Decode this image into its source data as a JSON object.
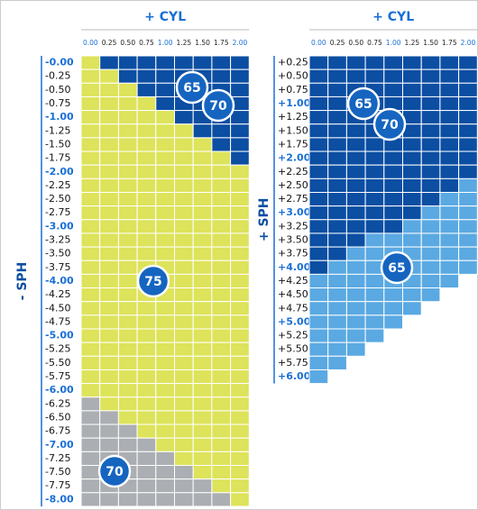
{
  "zones": {
    "Y": "#dde35a",
    "B": "#0b4ea2",
    "G": "#abaeb2",
    "L": "#5aa9e2"
  },
  "panels": [
    {
      "title": "+ CYL",
      "axis_label": "- SPH",
      "columns": [
        "0.00",
        "0.25",
        "0.50",
        "0.75",
        "1.00",
        "1.25",
        "1.50",
        "1.75",
        "2.00"
      ],
      "rows": [
        "-0.00",
        "-0.25",
        "-0.50",
        "-0.75",
        "-1.00",
        "-1.25",
        "-1.50",
        "-1.75",
        "-2.00",
        "-2.25",
        "-2.50",
        "-2.75",
        "-3.00",
        "-3.25",
        "-3.50",
        "-3.75",
        "-4.00",
        "-4.25",
        "-4.50",
        "-4.75",
        "-5.00",
        "-5.25",
        "-5.50",
        "-5.75",
        "-6.00",
        "-6.25",
        "-6.50",
        "-6.75",
        "-7.00",
        "-7.25",
        "-7.50",
        "-7.75",
        "-8.00"
      ],
      "cells": [
        "YBBBBBBBB",
        "YYBBBBBBB",
        "YYYBBBBBB",
        "YYYYBBBBB",
        "YYYYYBBBB",
        "YYYYYYBBB",
        "YYYYYYYBB",
        "YYYYYYYYB",
        "YYYYYYYYY",
        "YYYYYYYYY",
        "YYYYYYYYY",
        "YYYYYYYYY",
        "YYYYYYYYY",
        "YYYYYYYYY",
        "YYYYYYYYY",
        "YYYYYYYYY",
        "YYYYYYYYY",
        "YYYYYYYYY",
        "YYYYYYYYY",
        "YYYYYYYYY",
        "YYYYYYYYY",
        "YYYYYYYYY",
        "YYYYYYYYY",
        "YYYYYYYYY",
        "YYYYYYYYY",
        "GYYYYYYYY",
        "GGYYYYYYY",
        "GGGYYYYYY",
        "GGGGYYYYY",
        "GGGGGYYYY",
        "GGGGGGYYY",
        "GGGGGGGYY",
        "GGGGGGGGY"
      ],
      "badges": [
        "65",
        "70",
        "75",
        "70"
      ]
    },
    {
      "title": "+ CYL",
      "axis_label": "+ SPH",
      "columns": [
        "0.00",
        "0.25",
        "0.50",
        "0.75",
        "1.00",
        "1.25",
        "1.50",
        "1.75",
        "2.00"
      ],
      "rows": [
        "+0.25",
        "+0.50",
        "+0.75",
        "+1.00",
        "+1.25",
        "+1.50",
        "+1.75",
        "+2.00",
        "+2.25",
        "+2.50",
        "+2.75",
        "+3.00",
        "+3.25",
        "+3.50",
        "+3.75",
        "+4.00",
        "+4.25",
        "+4.50",
        "+4.75",
        "+5.00",
        "+5.25",
        "+5.50",
        "+5.75",
        "+6.00"
      ],
      "cells": [
        "BBBBBBBBB",
        "BBBBBBBBB",
        "BBBBBBBBB",
        "BBBBBBBBB",
        "BBBBBBBBB",
        "BBBBBBBBB",
        "BBBBBBBBB",
        "BBBBBBBBB",
        "BBBBBBBBB",
        "BBBBBBBBL",
        "BBBBBBBLL",
        "BBBBBBLLL",
        "BBBBBLLLL",
        "BBBLLLLLL",
        "BBLLLLLLL",
        "BLLLLLLLL",
        "LLLLLLLL-",
        "LLLLLLL--",
        "LLLLLL---",
        "LLLLL----",
        "LLLL-----",
        "LLL------",
        "LL-------",
        "L--------"
      ],
      "badges": [
        "65",
        "70",
        "65"
      ]
    }
  ]
}
